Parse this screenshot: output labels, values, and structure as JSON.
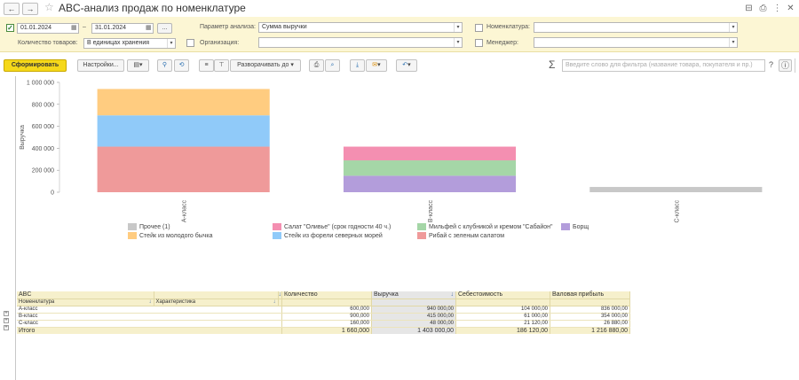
{
  "window": {
    "title": "ABC-анализ продаж по номенклатуре",
    "back_icon": "←",
    "forward_icon": "→",
    "star_icon": "☆",
    "right_icons": [
      "⊟",
      "⎙",
      "⋮",
      "✕"
    ]
  },
  "filters": {
    "period_enabled": "✓",
    "date_from": "01.01.2024",
    "date_to": "31.01.2024",
    "dash": "–",
    "calendar_icon": "▦",
    "dots": "...",
    "quantity_label": "Количество товаров:",
    "quantity_value": "В единицах хранения",
    "analysis_param_label": "Параметр анализа:",
    "analysis_param_value": "Сумма выручки",
    "organization_label": "Организация:",
    "organization_value": "",
    "nomenclature_label": "Номенклатура:",
    "nomenclature_value": "",
    "manager_label": "Менеджер:",
    "manager_value": "",
    "dropdown_arrow": "▾"
  },
  "toolbar": {
    "generate": "Сформировать",
    "settings": "Настройки...",
    "expand_to": "Разворачивать до",
    "sigma": "Σ",
    "search_placeholder": "Введите слово для фильтра (название товара, покупателя и пр.)",
    "help": "?",
    "info": "ⓘ",
    "arrow": "▾"
  },
  "colors": {
    "prochee": "#c8c8c8",
    "salat": "#f48fb1",
    "milfey": "#a5d6a7",
    "borsch": "#b39ddb",
    "steik": "#ffcc80",
    "forel": "#90caf9",
    "ribay": "#ef9a9a"
  },
  "chart_data": {
    "type": "bar",
    "stacked": true,
    "categories": [
      "А-класс",
      "B-класс",
      "C-класс"
    ],
    "ylabel": "Выручка",
    "ylim": [
      0,
      1000000
    ],
    "yticks": [
      "0",
      "200 000",
      "400 000",
      "600 000",
      "800 000",
      "1 000 000"
    ],
    "series": [
      {
        "name": "Прочее (1)",
        "values": [
          0,
          0,
          48000
        ],
        "color": "#c8c8c8"
      },
      {
        "name": "Рибай с зеленым салатом",
        "values": [
          415000,
          0,
          0
        ],
        "color": "#ef9a9a"
      },
      {
        "name": "Стейк из форели северных морей",
        "values": [
          285000,
          0,
          0
        ],
        "color": "#90caf9"
      },
      {
        "name": "Стейк из молодого бычка",
        "values": [
          240000,
          0,
          0
        ],
        "color": "#ffcc80"
      },
      {
        "name": "Борщ",
        "values": [
          0,
          150000,
          0
        ],
        "color": "#b39ddb"
      },
      {
        "name": "Мильфей с клубникой и кремом \"Сабайон\"",
        "values": [
          0,
          140000,
          0
        ],
        "color": "#a5d6a7"
      },
      {
        "name": "Салат \"Оливье\" (срок годности 40 ч.)",
        "values": [
          0,
          125000,
          0
        ],
        "color": "#f48fb1"
      }
    ]
  },
  "legend": [
    {
      "label": "Прочее (1)",
      "color": "#c8c8c8"
    },
    {
      "label": "Салат \"Оливье\" (срок годности 40 ч.)",
      "color": "#f48fb1"
    },
    {
      "label": "Мильфей с клубникой и кремом \"Сабайон\"",
      "color": "#a5d6a7"
    },
    {
      "label": "Борщ",
      "color": "#b39ddb"
    },
    {
      "label": "Стейк из молодого бычка",
      "color": "#ffcc80"
    },
    {
      "label": "Стейк из форели северных морей",
      "color": "#90caf9"
    },
    {
      "label": "Рибай с зеленым салатом",
      "color": "#ef9a9a"
    }
  ],
  "table": {
    "h_abc": "ABC",
    "h_nomenclature": "Номенклатура",
    "h_characteristic": "Характеристика",
    "h_quantity": "Количество",
    "h_revenue": "Выручка",
    "h_cost": "Себестоимость",
    "h_profit": "Валовая прибыль",
    "sort_icon": "↓",
    "expand_icon": "+",
    "rows": [
      {
        "name": "А-класс",
        "qty": "600,000",
        "revenue": "940 000,00",
        "cost": "104 000,00",
        "profit": "836 000,00"
      },
      {
        "name": "B-класс",
        "qty": "900,000",
        "revenue": "415 000,00",
        "cost": "61 000,00",
        "profit": "354 000,00"
      },
      {
        "name": "C-класс",
        "qty": "160,000",
        "revenue": "48 000,00",
        "cost": "21 120,00",
        "profit": "26 880,00"
      }
    ],
    "total": {
      "name": "Итого",
      "qty": "1 660,000",
      "revenue": "1 403 000,00",
      "cost": "186 120,00",
      "profit": "1 216 880,00"
    }
  }
}
